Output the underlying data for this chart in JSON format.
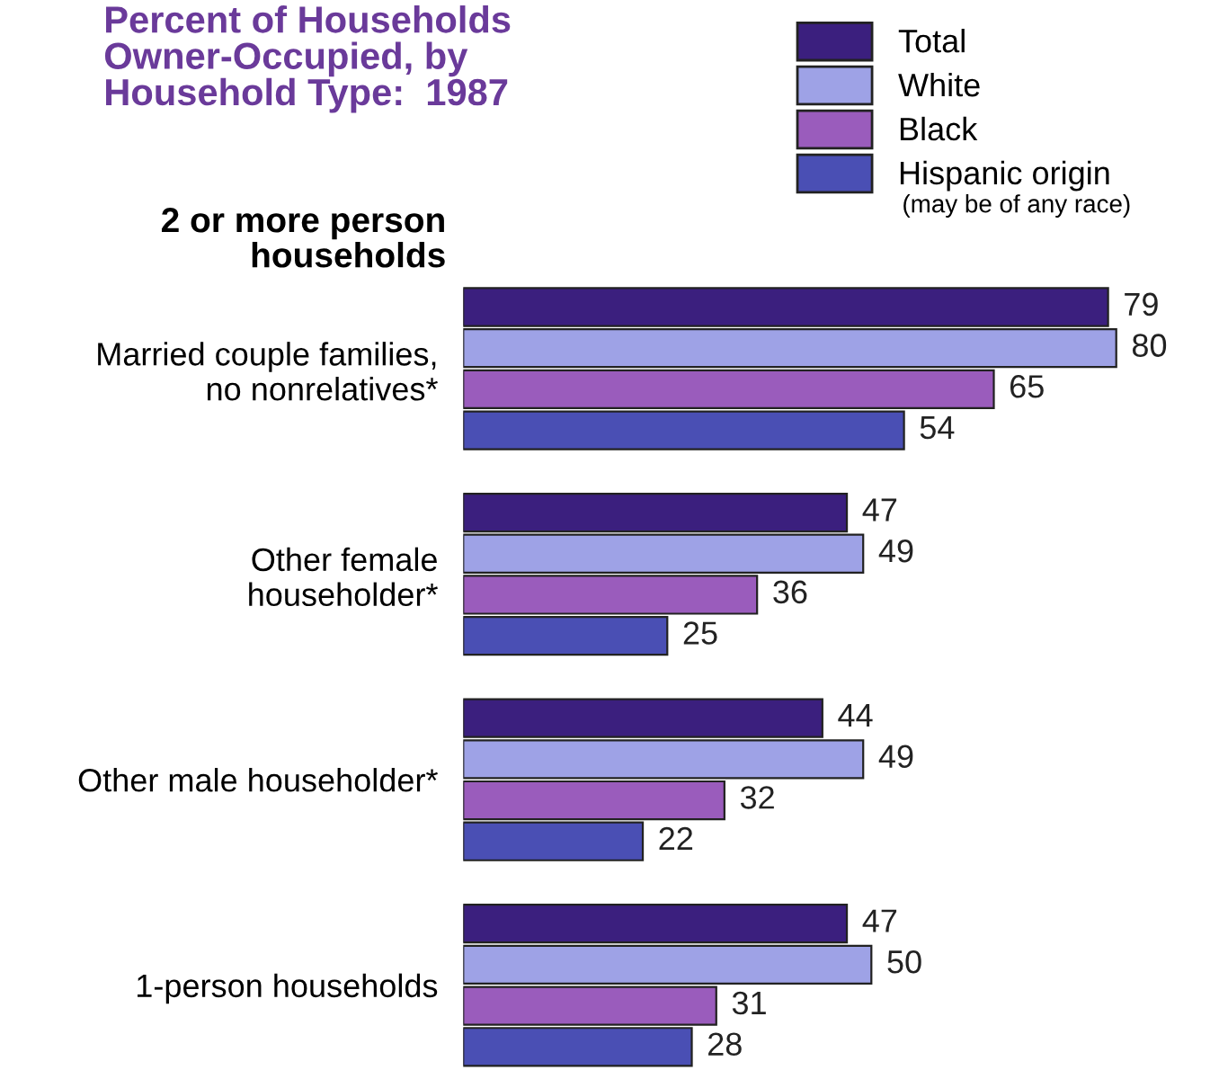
{
  "chart_data": {
    "type": "bar",
    "orientation": "horizontal",
    "title": "Percent of Households\nOwner-Occupied, by\nHousehold Type:  1987",
    "categories": [
      "Married couple families,\nno nonrelatives*",
      "Other female\nhouseholder*",
      "Other male householder*",
      "1-person households"
    ],
    "series": [
      {
        "name": "Total",
        "color": "#3b1f7e",
        "values": [
          79,
          47,
          44,
          47
        ]
      },
      {
        "name": "White",
        "color": "#9ea2e6",
        "values": [
          80,
          49,
          49,
          50
        ]
      },
      {
        "name": "Black",
        "color": "#9a5cbc",
        "values": [
          65,
          36,
          32,
          31
        ]
      },
      {
        "name": "Hispanic origin",
        "color": "#4a4fb4",
        "values": [
          54,
          25,
          22,
          28
        ]
      }
    ],
    "data_labels": true,
    "legend": "top right",
    "grid": false,
    "annotations": [
      "2 or more person\nhouseholds",
      "(may be of any race)"
    ]
  }
}
